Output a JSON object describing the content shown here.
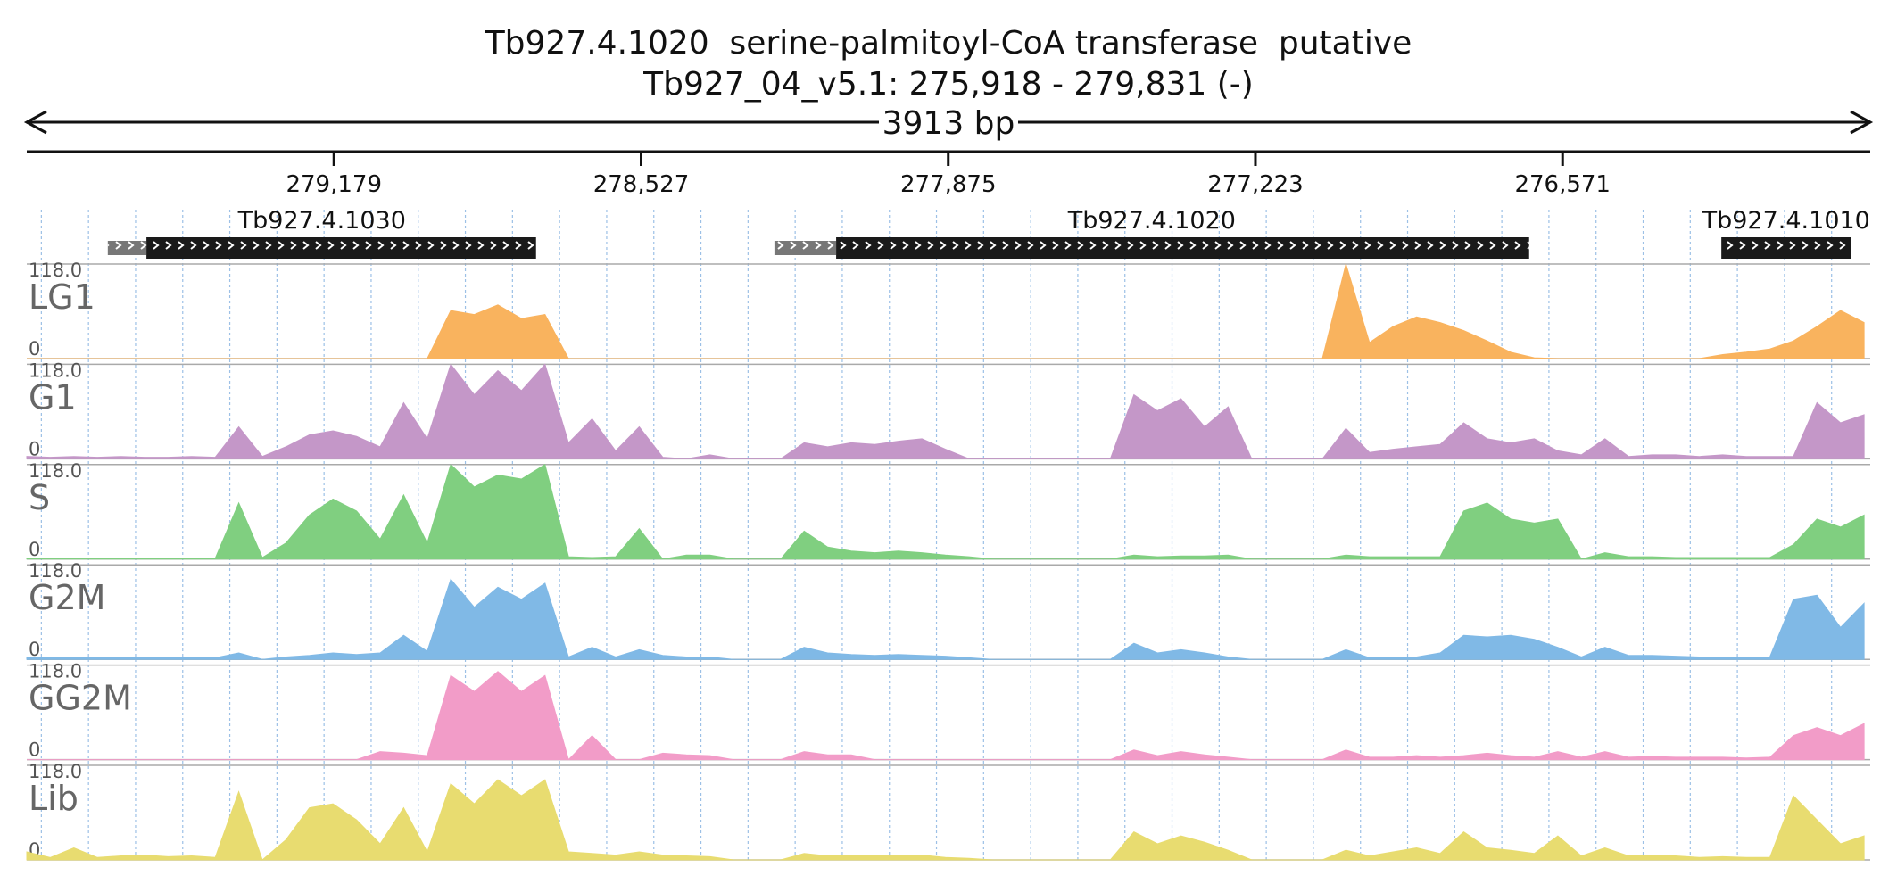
{
  "chart_data": {
    "type": "area",
    "title": "Tb927.4.1020  serine-palmitoyl-CoA transferase  putative",
    "subtitle": "Tb927_04_v5.1: 275,918 - 279,831 (-)",
    "span_label": "3913 bp",
    "xlim": [
      279831,
      275918
    ],
    "xticks": [
      {
        "value": 279179,
        "label": "279,179"
      },
      {
        "value": 278527,
        "label": "278,527"
      },
      {
        "value": 277875,
        "label": "277,875"
      },
      {
        "value": 277223,
        "label": "277,223"
      },
      {
        "value": 276571,
        "label": "276,571"
      }
    ],
    "ylim": [
      0,
      118
    ],
    "yticks": [
      0,
      {
        "value": 118,
        "label": "118.0"
      }
    ],
    "features": [
      {
        "name": "Tb927.4.1030",
        "utr": [
          279659,
          279577
        ],
        "cds": [
          279577,
          278750
        ]
      },
      {
        "name": "Tb927.4.1020",
        "utr": [
          278244,
          278113
        ],
        "cds": [
          278113,
          276642
        ]
      },
      {
        "name": "Tb927.4.1010",
        "cds": [
          276234,
          275959
        ]
      }
    ],
    "x": [
      279831,
      279781,
      279731,
      279681,
      279631,
      279581,
      279531,
      279481,
      279431,
      279381,
      279331,
      279281,
      279231,
      279181,
      279131,
      279081,
      279031,
      278981,
      278931,
      278881,
      278831,
      278781,
      278731,
      278681,
      278631,
      278581,
      278531,
      278481,
      278431,
      278381,
      278331,
      278281,
      278231,
      278181,
      278131,
      278081,
      278031,
      277981,
      277931,
      277881,
      277831,
      277781,
      277731,
      277681,
      277631,
      277581,
      277531,
      277481,
      277431,
      277381,
      277331,
      277281,
      277231,
      277181,
      277131,
      277081,
      277031,
      276981,
      276931,
      276881,
      276831,
      276781,
      276731,
      276681,
      276631,
      276581,
      276531,
      276481,
      276431,
      276381,
      276331,
      276281,
      276231,
      276181,
      276131,
      276081,
      276031,
      275981,
      275931
    ],
    "series": [
      {
        "name": "LG1",
        "color": "#f9b35e",
        "values": [
          0,
          0,
          0,
          0,
          0,
          0,
          0,
          0,
          0,
          0,
          0,
          0,
          0,
          0,
          0,
          0,
          0,
          0,
          60,
          55,
          67,
          50,
          55,
          0,
          0,
          0,
          0,
          0,
          0,
          0,
          0,
          0,
          0,
          0,
          0,
          0,
          0,
          0,
          0,
          0,
          0,
          0,
          0,
          0,
          0,
          0,
          0,
          0,
          0,
          0,
          0,
          0,
          0,
          0,
          0,
          0,
          118,
          20,
          40,
          52,
          45,
          35,
          22,
          8,
          1,
          0,
          0,
          0,
          0,
          0,
          0,
          0,
          5,
          8,
          12,
          22,
          40,
          60,
          45
        ]
      },
      {
        "name": "G1",
        "color": "#c497c8",
        "values": [
          3,
          2,
          3,
          2,
          3,
          2,
          2,
          3,
          2,
          40,
          3,
          15,
          30,
          35,
          28,
          15,
          70,
          25,
          118,
          80,
          110,
          85,
          118,
          20,
          50,
          10,
          40,
          2,
          0,
          5,
          0,
          0,
          0,
          20,
          15,
          20,
          18,
          22,
          25,
          12,
          0,
          0,
          0,
          0,
          0,
          0,
          0,
          80,
          60,
          75,
          40,
          65,
          0,
          0,
          0,
          0,
          38,
          8,
          12,
          15,
          18,
          45,
          25,
          20,
          25,
          10,
          5,
          25,
          3,
          5,
          5,
          3,
          5,
          3,
          3,
          3,
          70,
          45,
          55
        ]
      },
      {
        "name": "S",
        "color": "#80cf80",
        "values": [
          1,
          1,
          1,
          1,
          1,
          1,
          1,
          1,
          1,
          70,
          2,
          20,
          55,
          75,
          60,
          25,
          80,
          20,
          118,
          90,
          105,
          100,
          118,
          3,
          2,
          3,
          38,
          0,
          5,
          5,
          0,
          0,
          0,
          35,
          15,
          10,
          8,
          10,
          8,
          5,
          3,
          0,
          0,
          0,
          0,
          0,
          0,
          5,
          3,
          4,
          4,
          5,
          0,
          0,
          0,
          0,
          5,
          3,
          3,
          3,
          3,
          60,
          70,
          50,
          45,
          50,
          0,
          8,
          3,
          3,
          2,
          2,
          2,
          2,
          2,
          18,
          50,
          40,
          55
        ]
      },
      {
        "name": "G2M",
        "color": "#80b9e6",
        "values": [
          2,
          2,
          2,
          2,
          2,
          2,
          2,
          2,
          2,
          8,
          0,
          3,
          5,
          8,
          6,
          8,
          30,
          10,
          100,
          65,
          90,
          75,
          95,
          3,
          15,
          3,
          12,
          5,
          3,
          3,
          0,
          0,
          0,
          15,
          8,
          6,
          5,
          6,
          5,
          4,
          2,
          0,
          0,
          0,
          0,
          0,
          0,
          20,
          8,
          12,
          8,
          3,
          0,
          0,
          0,
          0,
          12,
          2,
          3,
          3,
          8,
          30,
          28,
          30,
          25,
          15,
          3,
          15,
          5,
          5,
          4,
          3,
          3,
          3,
          3,
          75,
          80,
          40,
          70
        ]
      },
      {
        "name": "GG2M",
        "color": "#f29cc8",
        "values": [
          0,
          0,
          0,
          0,
          0,
          0,
          0,
          0,
          0,
          0,
          0,
          0,
          0,
          0,
          0,
          10,
          8,
          5,
          105,
          85,
          110,
          85,
          105,
          0,
          30,
          0,
          0,
          8,
          6,
          5,
          0,
          0,
          0,
          10,
          6,
          6,
          0,
          0,
          0,
          0,
          0,
          0,
          0,
          0,
          0,
          0,
          0,
          12,
          5,
          10,
          6,
          3,
          0,
          0,
          0,
          0,
          12,
          3,
          3,
          5,
          3,
          5,
          8,
          5,
          3,
          10,
          3,
          10,
          3,
          4,
          3,
          3,
          3,
          2,
          3,
          30,
          40,
          30,
          45
        ]
      },
      {
        "name": "Lib",
        "color": "#e8dc70",
        "values": [
          10,
          3,
          15,
          3,
          5,
          6,
          4,
          5,
          3,
          85,
          0,
          25,
          65,
          70,
          50,
          20,
          65,
          10,
          95,
          70,
          100,
          80,
          100,
          10,
          8,
          6,
          10,
          6,
          5,
          4,
          0,
          0,
          0,
          8,
          5,
          6,
          5,
          5,
          6,
          3,
          2,
          0,
          0,
          0,
          0,
          0,
          0,
          35,
          20,
          30,
          22,
          12,
          0,
          0,
          0,
          0,
          12,
          5,
          10,
          15,
          8,
          35,
          15,
          12,
          8,
          30,
          5,
          15,
          5,
          5,
          5,
          3,
          4,
          3,
          3,
          80,
          50,
          20,
          30
        ]
      }
    ]
  }
}
